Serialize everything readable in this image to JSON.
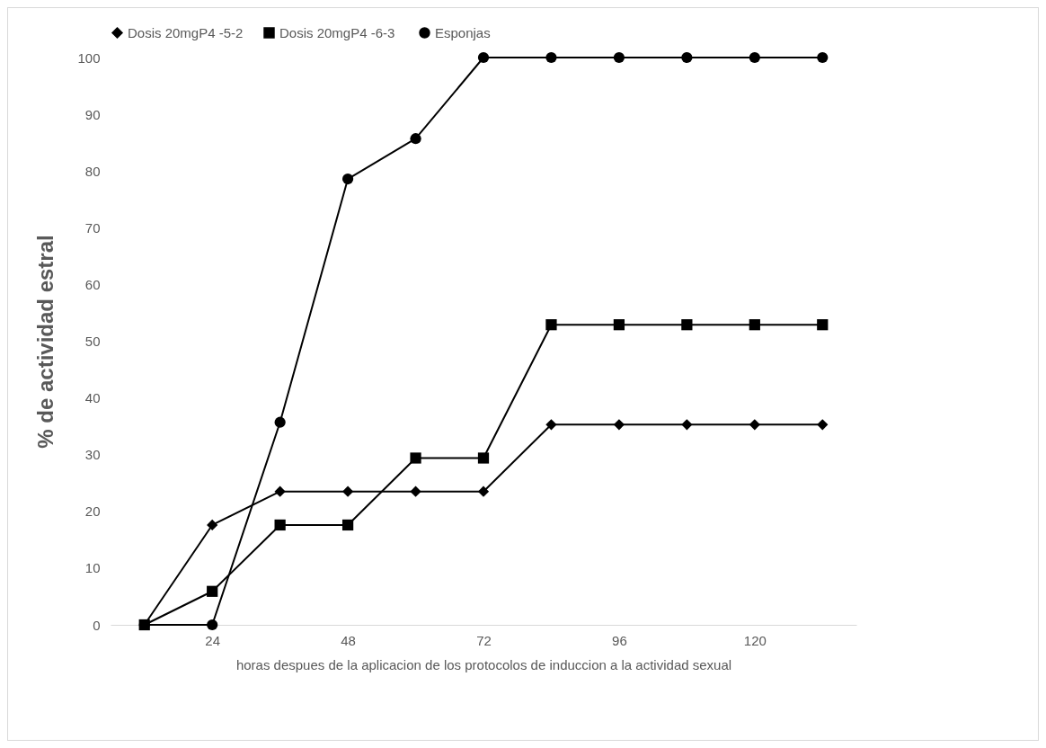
{
  "chart_data": {
    "type": "line",
    "xlabel": "horas despues de la aplicacion de los protocolos de induccion a la actividad   sexual",
    "ylabel": "% de actividad estral",
    "categories": [
      null,
      "24",
      null,
      "48",
      null,
      "72",
      null,
      "96",
      null,
      "120",
      null
    ],
    "series": [
      {
        "name": "Dosis 20mgP4 -5-2",
        "color": "#000000",
        "marker": "diamond",
        "values": [
          0,
          17.6,
          23.5,
          23.5,
          23.5,
          23.5,
          35.3,
          35.3,
          35.3,
          35.3,
          35.3
        ]
      },
      {
        "name": "Dosis 20mgP4  -6-3",
        "color": "#000000",
        "marker": "square",
        "values": [
          0,
          5.9,
          17.6,
          17.6,
          29.4,
          29.4,
          52.9,
          52.9,
          52.9,
          52.9,
          52.9
        ]
      },
      {
        "name": "Esponjas",
        "color": "#000000",
        "marker": "circle",
        "values": [
          0,
          0,
          35.7,
          78.6,
          85.7,
          100,
          100,
          100,
          100,
          100,
          100
        ]
      }
    ],
    "ylim": [
      0,
      100
    ],
    "yticks": [
      0,
      10,
      20,
      30,
      40,
      50,
      60,
      70,
      80,
      90,
      100
    ],
    "grid": false,
    "legend": "top"
  }
}
